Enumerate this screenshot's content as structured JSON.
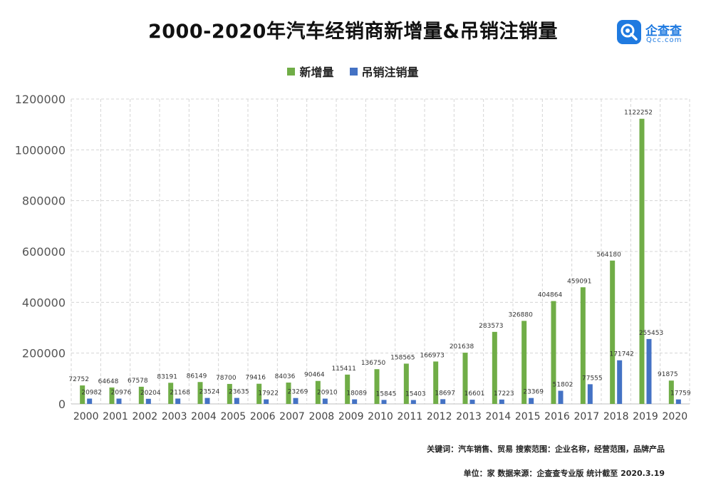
{
  "title": "2000-2020年汽车经销商新增量&吊销注销量",
  "logo": {
    "name": "企查查",
    "domain": "Qcc.com"
  },
  "footer": {
    "keywords": "关键词：汽车销售、贸易 搜索范围：企业名称，经营范围，品牌产品",
    "source": "单位：家    数据来源：企查查专业版    统计截至 2020.3.19"
  },
  "colors": {
    "new": "#70ad47",
    "revoked": "#4472c4"
  },
  "chart_data": {
    "type": "bar",
    "categories": [
      "2000",
      "2001",
      "2002",
      "2003",
      "2004",
      "2005",
      "2006",
      "2007",
      "2008",
      "2009",
      "2010",
      "2011",
      "2012",
      "2013",
      "2014",
      "2015",
      "2016",
      "2017",
      "2018",
      "2019",
      "2020"
    ],
    "series": [
      {
        "name": "新增量",
        "values": [
          72752,
          64648,
          67578,
          83191,
          86149,
          78700,
          79416,
          84036,
          90464,
          115411,
          136750,
          158565,
          166973,
          201638,
          283573,
          326880,
          404864,
          459091,
          564180,
          1122252,
          91875
        ]
      },
      {
        "name": "吊销注销量",
        "values": [
          20982,
          20976,
          20204,
          21168,
          23524,
          23635,
          17922,
          23269,
          20910,
          18089,
          15845,
          15403,
          18697,
          16601,
          17223,
          23369,
          51802,
          77555,
          171742,
          255453,
          17759
        ]
      }
    ],
    "ylim": [
      0,
      1200000
    ],
    "yticks": [
      0,
      200000,
      400000,
      600000,
      800000,
      1000000,
      1200000
    ],
    "grid": true,
    "legend_position": "top-center"
  }
}
